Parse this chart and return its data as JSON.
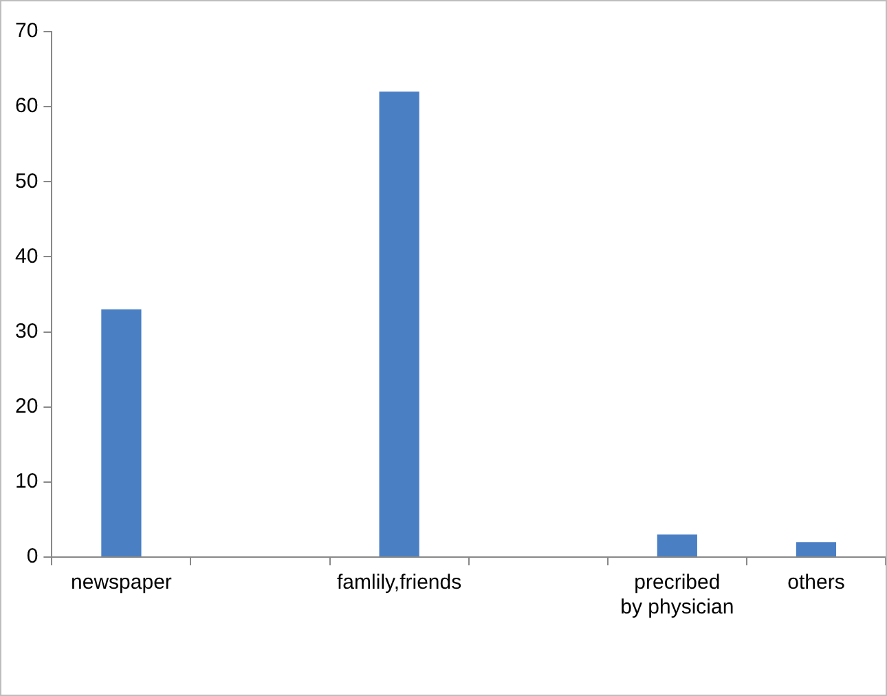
{
  "chart_data": {
    "type": "bar",
    "categories": [
      "newspaper",
      null,
      "famlily,friends",
      null,
      "precribed by physician",
      "others"
    ],
    "values": [
      33,
      null,
      62,
      null,
      3,
      2
    ],
    "color": "#4a7fc4",
    "ylim": [
      0,
      70
    ],
    "yticks": [
      0,
      10,
      20,
      30,
      40,
      50,
      60,
      70
    ],
    "grid": false,
    "legend": false
  }
}
